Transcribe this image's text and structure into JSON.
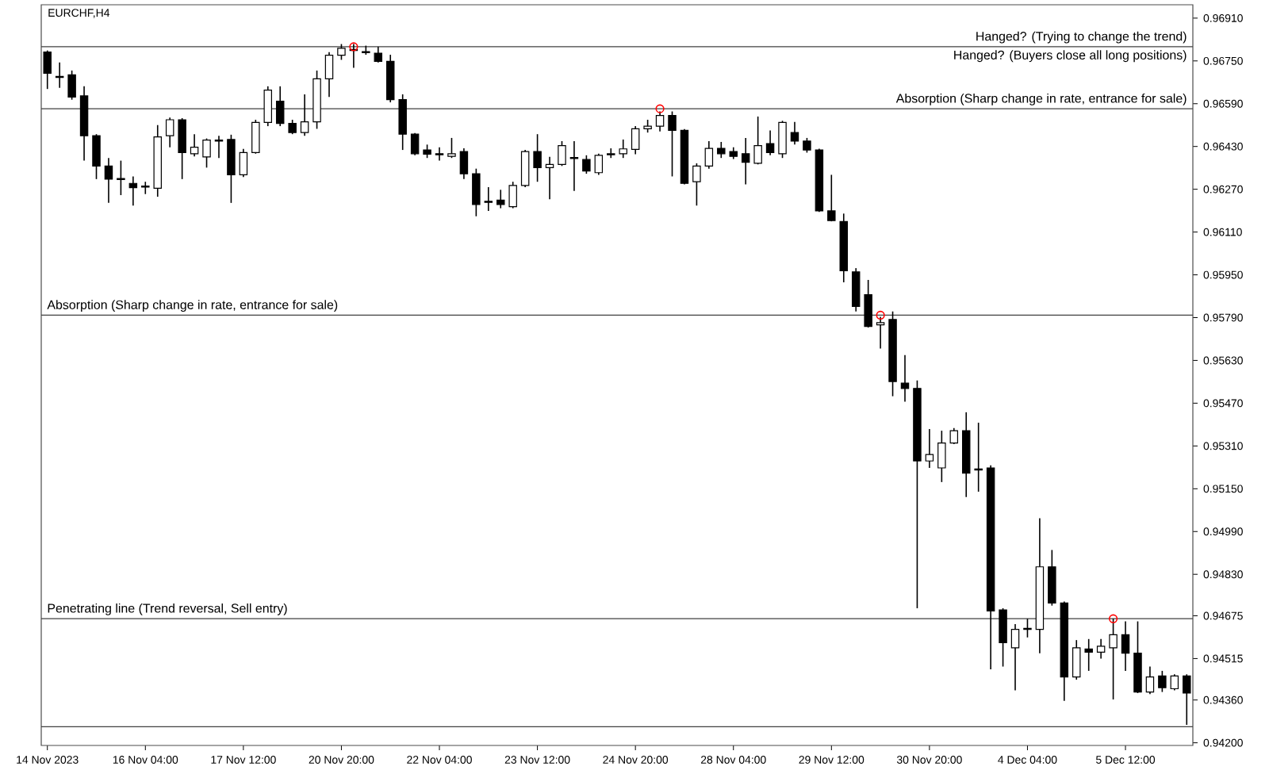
{
  "chart_data": {
    "type": "candlestick",
    "title": "EURCHF,H4",
    "categories": [
      "14 Nov 2023",
      null,
      null,
      null,
      null,
      null,
      null,
      null,
      "16 Nov 04:00",
      null,
      null,
      null,
      null,
      null,
      null,
      null,
      "17 Nov 12:00",
      null,
      null,
      null,
      null,
      null,
      null,
      null,
      "20 Nov 20:00",
      null,
      null,
      null,
      null,
      null,
      null,
      null,
      "22 Nov 04:00",
      null,
      null,
      null,
      null,
      null,
      null,
      null,
      "23 Nov 12:00",
      null,
      null,
      null,
      null,
      null,
      null,
      null,
      "24 Nov 20:00",
      null,
      null,
      null,
      null,
      null,
      null,
      null,
      "28 Nov 04:00",
      null,
      null,
      null,
      null,
      null,
      null,
      null,
      "29 Nov 12:00",
      null,
      null,
      null,
      null,
      null,
      null,
      null,
      "30 Nov 20:00",
      null,
      null,
      null,
      null,
      null,
      null,
      null,
      "4 Dec 04:00",
      null,
      null,
      null,
      null,
      null,
      null,
      null,
      "5 Dec 12:00",
      null,
      null,
      null,
      null,
      null
    ],
    "ohlc": [
      [
        0.96783,
        0.96789,
        0.96645,
        0.96704
      ],
      [
        0.96688,
        0.96744,
        0.96649,
        0.96692
      ],
      [
        0.96698,
        0.96714,
        0.96605,
        0.96615
      ],
      [
        0.96619,
        0.96655,
        0.96377,
        0.9647
      ],
      [
        0.9647,
        0.96476,
        0.96308,
        0.96357
      ],
      [
        0.96357,
        0.96387,
        0.96219,
        0.96308
      ],
      [
        0.9631,
        0.96377,
        0.96248,
        0.96306
      ],
      [
        0.96292,
        0.96318,
        0.96209,
        0.96276
      ],
      [
        0.96282,
        0.96298,
        0.96252,
        0.96278
      ],
      [
        0.96274,
        0.9651,
        0.96242,
        0.96466
      ],
      [
        0.9647,
        0.96538,
        0.96427,
        0.9653
      ],
      [
        0.9653,
        0.96536,
        0.96308,
        0.96407
      ],
      [
        0.96403,
        0.96476,
        0.96393,
        0.96427
      ],
      [
        0.96391,
        0.9646,
        0.96351,
        0.96454
      ],
      [
        0.9645,
        0.9647,
        0.96387,
        0.96454
      ],
      [
        0.96456,
        0.96474,
        0.96219,
        0.96324
      ],
      [
        0.96324,
        0.96421,
        0.96316,
        0.96407
      ],
      [
        0.96407,
        0.9653,
        0.96403,
        0.9652
      ],
      [
        0.9652,
        0.96655,
        0.96506,
        0.96641
      ],
      [
        0.96599,
        0.96655,
        0.96506,
        0.96516
      ],
      [
        0.96516,
        0.9653,
        0.96476,
        0.96482
      ],
      [
        0.96482,
        0.96625,
        0.9647,
        0.96522
      ],
      [
        0.96522,
        0.96714,
        0.96496,
        0.96683
      ],
      [
        0.96683,
        0.96783,
        0.96615,
        0.96771
      ],
      [
        0.96771,
        0.96813,
        0.96754,
        0.96797
      ],
      [
        0.96789,
        0.96813,
        0.96724,
        0.96793
      ],
      [
        0.96785,
        0.96807,
        0.96773,
        0.96781
      ],
      [
        0.96779,
        0.96803,
        0.96744,
        0.96748
      ],
      [
        0.96748,
        0.96773,
        0.96595,
        0.96605
      ],
      [
        0.96605,
        0.96625,
        0.96417,
        0.96476
      ],
      [
        0.96476,
        0.9648,
        0.96397,
        0.96403
      ],
      [
        0.96417,
        0.96437,
        0.96387,
        0.96401
      ],
      [
        0.96403,
        0.96427,
        0.96377,
        0.96399
      ],
      [
        0.96393,
        0.96462,
        0.96387,
        0.96403
      ],
      [
        0.96411,
        0.96423,
        0.96308,
        0.96328
      ],
      [
        0.96328,
        0.96347,
        0.96169,
        0.96213
      ],
      [
        0.96225,
        0.96278,
        0.96189,
        0.96221
      ],
      [
        0.96229,
        0.96268,
        0.96199,
        0.96213
      ],
      [
        0.96205,
        0.96298,
        0.96199,
        0.96284
      ],
      [
        0.96284,
        0.96417,
        0.96278,
        0.96411
      ],
      [
        0.96411,
        0.96476,
        0.96298,
        0.96351
      ],
      [
        0.96351,
        0.96391,
        0.96233,
        0.96363
      ],
      [
        0.96363,
        0.9645,
        0.96357,
        0.96433
      ],
      [
        0.96389,
        0.9645,
        0.96264,
        0.96385
      ],
      [
        0.96381,
        0.96397,
        0.96328,
        0.96338
      ],
      [
        0.96332,
        0.96403,
        0.96324,
        0.96397
      ],
      [
        0.96399,
        0.96423,
        0.96387,
        0.96403
      ],
      [
        0.96403,
        0.96456,
        0.96387,
        0.96421
      ],
      [
        0.96419,
        0.96506,
        0.96401,
        0.96496
      ],
      [
        0.96496,
        0.9653,
        0.96482,
        0.96506
      ],
      [
        0.96506,
        0.96561,
        0.96486,
        0.96546
      ],
      [
        0.96546,
        0.96561,
        0.96318,
        0.9649
      ],
      [
        0.9649,
        0.96495,
        0.96288,
        0.96292
      ],
      [
        0.96298,
        0.96367,
        0.96209,
        0.96357
      ],
      [
        0.96357,
        0.9645,
        0.96347,
        0.96423
      ],
      [
        0.96423,
        0.96447,
        0.96387,
        0.96403
      ],
      [
        0.96411,
        0.96427,
        0.96383,
        0.96393
      ],
      [
        0.96403,
        0.96462,
        0.96288,
        0.96371
      ],
      [
        0.96367,
        0.96542,
        0.96363,
        0.96433
      ],
      [
        0.96441,
        0.9649,
        0.96397,
        0.96407
      ],
      [
        0.96403,
        0.96526,
        0.96387,
        0.9652
      ],
      [
        0.96482,
        0.96522,
        0.96437,
        0.9645
      ],
      [
        0.9645,
        0.96462,
        0.96407,
        0.96417
      ],
      [
        0.96417,
        0.96422,
        0.96185,
        0.96189
      ],
      [
        0.96189,
        0.96324,
        0.9615,
        0.96153
      ],
      [
        0.96149,
        0.96179,
        0.95922,
        0.95965
      ],
      [
        0.95961,
        0.95975,
        0.95813,
        0.95832
      ],
      [
        0.95876,
        0.95931,
        0.95753,
        0.95757
      ],
      [
        0.95763,
        0.95793,
        0.95674,
        0.95771
      ],
      [
        0.95783,
        0.95813,
        0.95496,
        0.95551
      ],
      [
        0.95545,
        0.9565,
        0.95476,
        0.95525
      ],
      [
        0.95525,
        0.95555,
        0.94703,
        0.95254
      ],
      [
        0.95254,
        0.95373,
        0.95228,
        0.95278
      ],
      [
        0.95228,
        0.95367,
        0.95175,
        0.95321
      ],
      [
        0.95321,
        0.95377,
        0.95317,
        0.95367
      ],
      [
        0.95367,
        0.95436,
        0.95119,
        0.95208
      ],
      [
        0.95224,
        0.95397,
        0.95139,
        0.9522
      ],
      [
        0.95228,
        0.95238,
        0.94475,
        0.94693
      ],
      [
        0.94697,
        0.94703,
        0.94485,
        0.94574
      ],
      [
        0.94555,
        0.94644,
        0.94396,
        0.94624
      ],
      [
        0.94624,
        0.94664,
        0.94594,
        0.94628
      ],
      [
        0.94624,
        0.9504,
        0.94535,
        0.94858
      ],
      [
        0.94858,
        0.94921,
        0.94713,
        0.94723
      ],
      [
        0.94723,
        0.94728,
        0.94357,
        0.94446
      ],
      [
        0.94446,
        0.94584,
        0.94436,
        0.94555
      ],
      [
        0.94551,
        0.94588,
        0.94469,
        0.94539
      ],
      [
        0.94539,
        0.94588,
        0.94515,
        0.94561
      ],
      [
        0.94555,
        0.94664,
        0.94362,
        0.94604
      ],
      [
        0.94604,
        0.94654,
        0.94469,
        0.94535
      ],
      [
        0.94535,
        0.94654,
        0.94386,
        0.9439
      ],
      [
        0.9439,
        0.94485,
        0.94382,
        0.94446
      ],
      [
        0.9445,
        0.94469,
        0.9439,
        0.94406
      ],
      [
        0.94402,
        0.94456,
        0.94396,
        0.9445
      ],
      [
        0.9445,
        0.94456,
        0.94267,
        0.94386
      ]
    ],
    "series": [
      {
        "type": "scatter",
        "color": "#ff0000",
        "marker": "circle",
        "values": [
          null,
          null,
          null,
          null,
          null,
          null,
          null,
          null,
          null,
          null,
          null,
          null,
          null,
          null,
          null,
          null,
          null,
          null,
          null,
          null,
          null,
          null,
          null,
          null,
          null,
          0.96803,
          null,
          null,
          null,
          null,
          null,
          null,
          null,
          null,
          null,
          null,
          null,
          null,
          null,
          null,
          null,
          null,
          null,
          null,
          null,
          null,
          null,
          null,
          null,
          null,
          0.96571,
          null,
          null,
          null,
          null,
          null,
          null,
          null,
          null,
          null,
          null,
          null,
          null,
          null,
          null,
          null,
          null,
          null,
          0.95799,
          null,
          null,
          null,
          null,
          null,
          null,
          null,
          null,
          null,
          null,
          null,
          null,
          null,
          null,
          null,
          null,
          null,
          null,
          0.94664,
          null,
          null,
          null,
          null,
          null,
          null
        ]
      }
    ],
    "ylim": [
      0.9419,
      0.9696
    ],
    "yticks": [
      {
        "value": 0.9691,
        "label": "0.96910"
      },
      {
        "value": 0.9675,
        "label": "0.96750"
      },
      {
        "value": 0.9659,
        "label": "0.96590"
      },
      {
        "value": 0.9643,
        "label": "0.96430"
      },
      {
        "value": 0.9627,
        "label": "0.96270"
      },
      {
        "value": 0.9611,
        "label": "0.96110"
      },
      {
        "value": 0.9595,
        "label": "0.95950"
      },
      {
        "value": 0.9579,
        "label": "0.95790"
      },
      {
        "value": 0.9563,
        "label": "0.95630"
      },
      {
        "value": 0.9547,
        "label": "0.95470"
      },
      {
        "value": 0.9531,
        "label": "0.95310"
      },
      {
        "value": 0.9515,
        "label": "0.95150"
      },
      {
        "value": 0.9499,
        "label": "0.94990"
      },
      {
        "value": 0.9483,
        "label": "0.94830"
      },
      0.94675,
      0.94515,
      {
        "value": 0.9436,
        "label": "0.94360"
      },
      {
        "value": 0.942,
        "label": "0.94200"
      }
    ],
    "ref_lines": [
      {
        "axis": "y",
        "value": 0.96803,
        "label": "Hanged? (Trying to change the trend)"
      },
      {
        "axis": "y",
        "value": 0.96571,
        "label": "Absorption (Sharp change in rate, entrance for sale)"
      },
      {
        "axis": "y",
        "value": 0.95799,
        "label": "Absorption (Sharp change in rate, entrance for sale)"
      },
      {
        "axis": "y",
        "value": 0.94664,
        "label": "Penetrating line (Trend reversal, Sell entry)"
      },
      {
        "axis": "y",
        "value": 0.9426
      }
    ],
    "annotations": [
      "Hanged? (Buyers close all long positions)"
    ]
  }
}
